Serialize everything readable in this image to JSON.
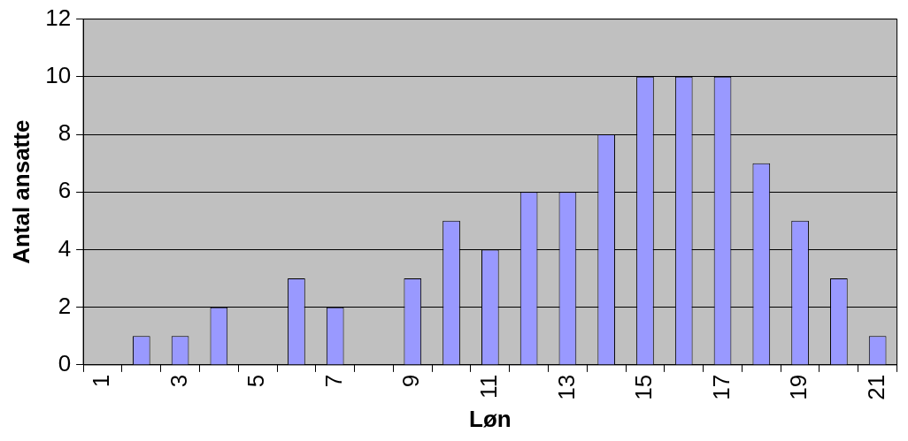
{
  "chart_data": {
    "type": "bar",
    "xlabel": "Løn",
    "ylabel": "Antal ansatte",
    "categories": [
      "1",
      null,
      "3",
      null,
      "5",
      null,
      "7",
      null,
      "9",
      null,
      "11",
      null,
      "13",
      null,
      "15",
      null,
      "17",
      null,
      "19",
      null,
      "21"
    ],
    "values": [
      0,
      1,
      1,
      2,
      0,
      3,
      2,
      0,
      3,
      5,
      4,
      6,
      6,
      8,
      10,
      10,
      10,
      7,
      5,
      3,
      1
    ],
    "color": "#9999ff",
    "ylim": [
      0,
      12
    ],
    "yticks": [
      0,
      2,
      4,
      6,
      8,
      10,
      12
    ],
    "grid": "y",
    "legend": false
  }
}
